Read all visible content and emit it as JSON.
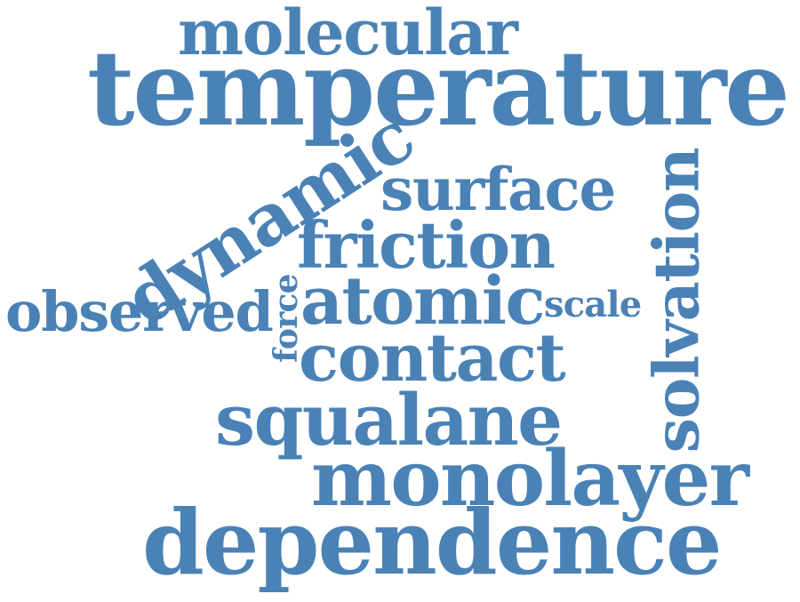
{
  "cloud": {
    "color": "#4a82b6",
    "words": {
      "molecular": "molecular",
      "temperature": "temperature",
      "dynamic": "dynamic",
      "surface": "surface",
      "friction": "friction",
      "force": "force",
      "observed": "observed",
      "atomic": "atomic",
      "scale": "scale",
      "contact": "contact",
      "solvation": "solvation",
      "squalane": "squalane",
      "monolayer": "monolayer",
      "dependence": "dependence"
    }
  }
}
